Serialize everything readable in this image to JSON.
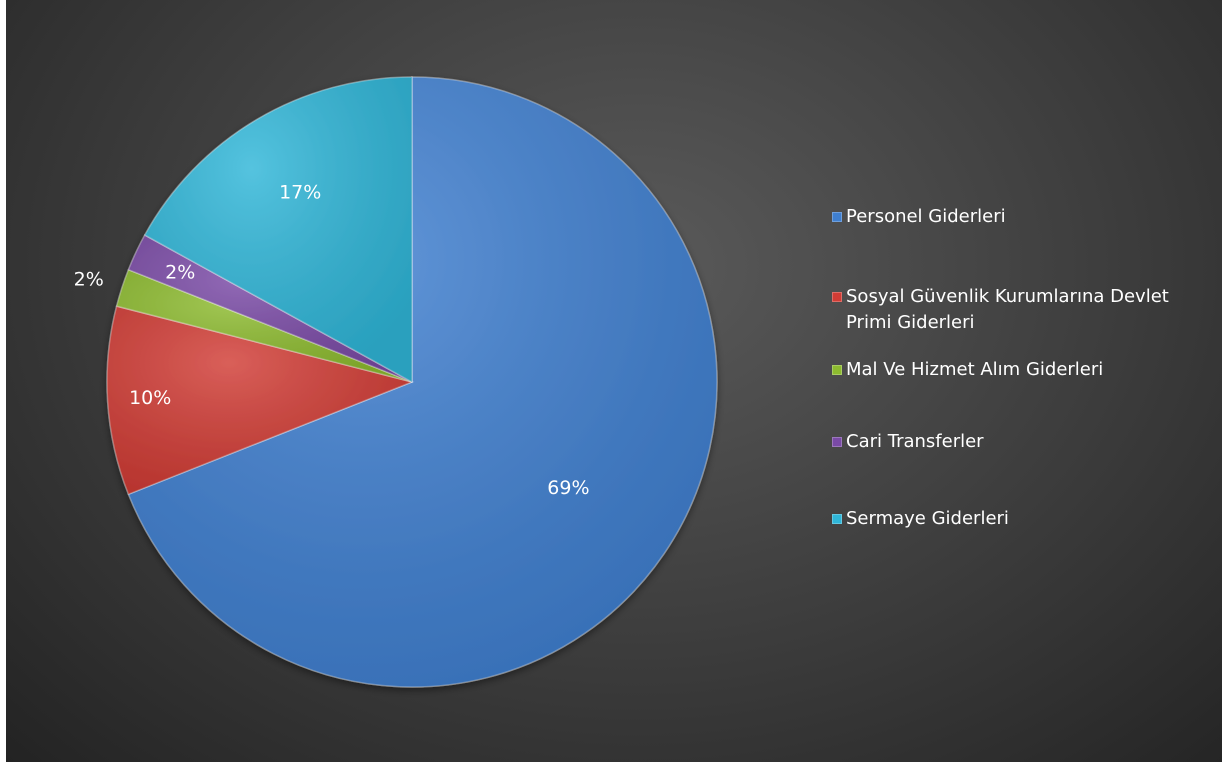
{
  "chart_data": {
    "type": "pie",
    "slices": [
      {
        "name": "Personel Giderleri",
        "value": 69,
        "label": "69%",
        "color": "#3f7fd0"
      },
      {
        "name": "Sosyal Güvenlik Kurumlarına Devlet Primi Giderleri",
        "value": 10,
        "label": "10%",
        "color": "#d13c35"
      },
      {
        "name": "Mal Ve Hizmet Alım Giderleri",
        "value": 2,
        "label": "2%",
        "color": "#8dbb2f"
      },
      {
        "name": "Cari Transferler",
        "value": 2,
        "label": "2%",
        "color": "#7a4aa6"
      },
      {
        "name": "Sermaye Giderleri",
        "value": 17,
        "label": "17%",
        "color": "#2fb6d8"
      }
    ],
    "start_angle_deg": 0,
    "direction": "clockwise",
    "legend_position": "right",
    "background_color": "#3a3a3a"
  },
  "legend": {
    "items": [
      {
        "label": "Personel Giderleri",
        "color": "#3f7fd0"
      },
      {
        "label": "Sosyal Güvenlik Kurumlarına Devlet Primi Giderleri",
        "color": "#d13c35"
      },
      {
        "label": "Mal Ve Hizmet Alım Giderleri",
        "color": "#8dbb2f"
      },
      {
        "label": "Cari Transferler",
        "color": "#7a4aa6"
      },
      {
        "label": "Sermaye Giderleri",
        "color": "#2fb6d8"
      }
    ]
  }
}
